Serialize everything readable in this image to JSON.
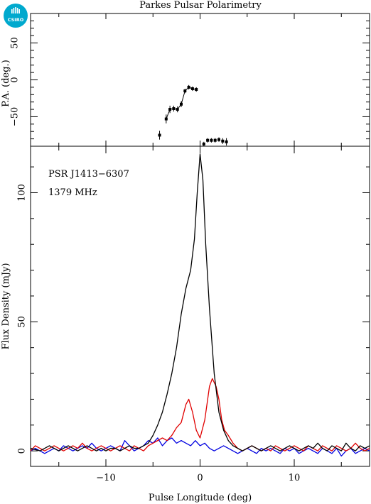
{
  "chart_data": [
    {
      "type": "scatter",
      "panel": "position-angle",
      "title": "Parkes Pulsar Polarimetry",
      "xlabel": "",
      "ylabel": "P.A. (deg.)",
      "xlim": [
        -18,
        18
      ],
      "ylim": [
        -90,
        90
      ],
      "yticks": [
        -50,
        0,
        50
      ],
      "error_bars": true,
      "points": [
        {
          "x": -4.3,
          "y": -75,
          "err": 6
        },
        {
          "x": -3.6,
          "y": -53,
          "err": 6
        },
        {
          "x": -3.2,
          "y": -40,
          "err": 5
        },
        {
          "x": -2.8,
          "y": -39,
          "err": 4
        },
        {
          "x": -2.4,
          "y": -40,
          "err": 4
        },
        {
          "x": -2.0,
          "y": -33,
          "err": 4
        },
        {
          "x": -1.6,
          "y": -15,
          "err": 3
        },
        {
          "x": -1.2,
          "y": -10,
          "err": 3
        },
        {
          "x": -0.8,
          "y": -12,
          "err": 3
        },
        {
          "x": -0.4,
          "y": -13,
          "err": 3
        },
        {
          "x": 0.4,
          "y": -87,
          "err": 3
        },
        {
          "x": 0.8,
          "y": -82,
          "err": 3
        },
        {
          "x": 1.2,
          "y": -82,
          "err": 3
        },
        {
          "x": 1.6,
          "y": -82,
          "err": 3
        },
        {
          "x": 2.0,
          "y": -81,
          "err": 3
        },
        {
          "x": 2.4,
          "y": -83,
          "err": 4
        },
        {
          "x": 2.8,
          "y": -84,
          "err": 5
        }
      ]
    },
    {
      "type": "line",
      "panel": "profile",
      "xlabel": "Pulse Longitude (deg)",
      "ylabel": "Flux Density (mJy)",
      "xlim": [
        -18,
        18
      ],
      "ylim": [
        -6,
        118
      ],
      "xticks": [
        -10,
        0,
        10
      ],
      "yticks": [
        0,
        50,
        100
      ],
      "annotations": [
        "PSR J1413−6307",
        "1379 MHz"
      ],
      "series": [
        {
          "color": "#000000",
          "points": [
            [
              -18,
              1
            ],
            [
              -17.5,
              0.5
            ],
            [
              -17,
              0
            ],
            [
              -16.5,
              1
            ],
            [
              -16,
              2
            ],
            [
              -15.5,
              1
            ],
            [
              -15,
              0
            ],
            [
              -14.5,
              1
            ],
            [
              -14,
              2
            ],
            [
              -13.5,
              1
            ],
            [
              -13,
              0
            ],
            [
              -12.5,
              1
            ],
            [
              -12,
              2
            ],
            [
              -11.5,
              1
            ],
            [
              -11,
              0
            ],
            [
              -10.5,
              1
            ],
            [
              -10,
              0
            ],
            [
              -9.5,
              1
            ],
            [
              -9,
              1
            ],
            [
              -8.5,
              0
            ],
            [
              -8,
              1
            ],
            [
              -7.5,
              2
            ],
            [
              -7,
              1
            ],
            [
              -6.5,
              1
            ],
            [
              -6,
              2
            ],
            [
              -5.5,
              3
            ],
            [
              -5,
              6
            ],
            [
              -4.5,
              10
            ],
            [
              -4,
              15
            ],
            [
              -3.5,
              22
            ],
            [
              -3,
              30
            ],
            [
              -2.5,
              40
            ],
            [
              -2,
              53
            ],
            [
              -1.5,
              63
            ],
            [
              -1,
              70
            ],
            [
              -0.6,
              82
            ],
            [
              -0.3,
              100
            ],
            [
              0,
              115
            ],
            [
              0.3,
              105
            ],
            [
              0.6,
              80
            ],
            [
              1,
              55
            ],
            [
              1.5,
              30
            ],
            [
              2,
              15
            ],
            [
              2.5,
              8
            ],
            [
              3,
              4
            ],
            [
              3.5,
              2
            ],
            [
              4,
              1
            ],
            [
              4.5,
              0
            ],
            [
              5,
              1
            ],
            [
              5.5,
              2
            ],
            [
              6,
              1
            ],
            [
              6.5,
              0
            ],
            [
              7,
              1
            ],
            [
              7.5,
              2
            ],
            [
              8,
              1
            ],
            [
              8.5,
              0
            ],
            [
              9,
              1
            ],
            [
              9.5,
              2
            ],
            [
              10,
              1
            ],
            [
              10.5,
              0
            ],
            [
              11,
              1
            ],
            [
              11.5,
              2
            ],
            [
              12,
              1
            ],
            [
              12.5,
              3
            ],
            [
              13,
              1
            ],
            [
              13.5,
              0
            ],
            [
              14,
              2
            ],
            [
              14.5,
              1
            ],
            [
              15,
              0
            ],
            [
              15.5,
              3
            ],
            [
              16,
              1
            ],
            [
              16.5,
              0
            ],
            [
              17,
              2
            ],
            [
              17.5,
              1
            ],
            [
              18,
              2
            ]
          ]
        },
        {
          "color": "#e00000",
          "points": [
            [
              -18,
              0
            ],
            [
              -17.5,
              2
            ],
            [
              -17,
              1
            ],
            [
              -16.5,
              0
            ],
            [
              -16,
              1
            ],
            [
              -15.5,
              2
            ],
            [
              -15,
              1
            ],
            [
              -14.5,
              0
            ],
            [
              -14,
              1
            ],
            [
              -13.5,
              2
            ],
            [
              -13,
              1
            ],
            [
              -12.5,
              3
            ],
            [
              -12,
              1
            ],
            [
              -11.5,
              0
            ],
            [
              -11,
              1
            ],
            [
              -10.5,
              2
            ],
            [
              -10,
              1
            ],
            [
              -9.5,
              0
            ],
            [
              -9,
              1
            ],
            [
              -8.5,
              2
            ],
            [
              -8,
              1
            ],
            [
              -7.5,
              0
            ],
            [
              -7,
              2
            ],
            [
              -6.5,
              1
            ],
            [
              -6,
              0
            ],
            [
              -5.5,
              2
            ],
            [
              -5,
              3
            ],
            [
              -4.5,
              4
            ],
            [
              -4,
              5
            ],
            [
              -3.5,
              4
            ],
            [
              -3,
              6
            ],
            [
              -2.5,
              9
            ],
            [
              -2,
              11
            ],
            [
              -1.5,
              18
            ],
            [
              -1.2,
              20
            ],
            [
              -0.8,
              15
            ],
            [
              -0.4,
              8
            ],
            [
              0,
              5
            ],
            [
              0.5,
              12
            ],
            [
              1,
              25
            ],
            [
              1.3,
              28
            ],
            [
              1.7,
              25
            ],
            [
              2,
              20
            ],
            [
              2.3,
              12
            ],
            [
              2.6,
              8
            ],
            [
              3,
              6
            ],
            [
              3.5,
              3
            ],
            [
              4,
              1
            ],
            [
              4.5,
              0
            ],
            [
              5,
              1
            ],
            [
              5.5,
              2
            ],
            [
              6,
              1
            ],
            [
              6.5,
              0
            ],
            [
              7,
              1
            ],
            [
              7.5,
              0
            ],
            [
              8,
              2
            ],
            [
              8.5,
              1
            ],
            [
              9,
              0
            ],
            [
              9.5,
              1
            ],
            [
              10,
              2
            ],
            [
              10.5,
              1
            ],
            [
              11,
              0
            ],
            [
              11.5,
              2
            ],
            [
              12,
              1
            ],
            [
              12.5,
              0
            ],
            [
              13,
              2
            ],
            [
              13.5,
              1
            ],
            [
              14,
              0
            ],
            [
              14.5,
              2
            ],
            [
              15,
              1
            ],
            [
              15.5,
              0
            ],
            [
              16,
              1
            ],
            [
              16.5,
              3
            ],
            [
              17,
              1
            ],
            [
              17.5,
              0
            ],
            [
              18,
              1
            ]
          ]
        },
        {
          "color": "#0000e0",
          "points": [
            [
              -18,
              0
            ],
            [
              -17.5,
              1
            ],
            [
              -17,
              0
            ],
            [
              -16.5,
              -1
            ],
            [
              -16,
              0
            ],
            [
              -15.5,
              1
            ],
            [
              -15,
              0
            ],
            [
              -14.5,
              2
            ],
            [
              -14,
              1
            ],
            [
              -13.5,
              0
            ],
            [
              -13,
              1
            ],
            [
              -12.5,
              2
            ],
            [
              -12,
              1
            ],
            [
              -11.5,
              3
            ],
            [
              -11,
              1
            ],
            [
              -10.5,
              0
            ],
            [
              -10,
              1
            ],
            [
              -9.5,
              2
            ],
            [
              -9,
              1
            ],
            [
              -8.5,
              0
            ],
            [
              -8,
              4
            ],
            [
              -7.5,
              2
            ],
            [
              -7,
              0
            ],
            [
              -6.5,
              1
            ],
            [
              -6,
              2
            ],
            [
              -5.5,
              4
            ],
            [
              -5,
              3
            ],
            [
              -4.5,
              5
            ],
            [
              -4,
              2
            ],
            [
              -3.5,
              4
            ],
            [
              -3,
              5
            ],
            [
              -2.5,
              3
            ],
            [
              -2,
              4
            ],
            [
              -1.5,
              3
            ],
            [
              -1,
              2
            ],
            [
              -0.5,
              4
            ],
            [
              0,
              2
            ],
            [
              0.5,
              3
            ],
            [
              1,
              1
            ],
            [
              1.5,
              0
            ],
            [
              2,
              1
            ],
            [
              2.5,
              2
            ],
            [
              3,
              1
            ],
            [
              3.5,
              0
            ],
            [
              4,
              -1
            ],
            [
              4.5,
              0
            ],
            [
              5,
              1
            ],
            [
              5.5,
              0
            ],
            [
              6,
              -1
            ],
            [
              6.5,
              1
            ],
            [
              7,
              0
            ],
            [
              7.5,
              1
            ],
            [
              8,
              0
            ],
            [
              8.5,
              -1
            ],
            [
              9,
              1
            ],
            [
              9.5,
              0
            ],
            [
              10,
              1
            ],
            [
              10.5,
              -1
            ],
            [
              11,
              0
            ],
            [
              11.5,
              1
            ],
            [
              12,
              0
            ],
            [
              12.5,
              -1
            ],
            [
              13,
              1
            ],
            [
              13.5,
              0
            ],
            [
              14,
              -1
            ],
            [
              14.5,
              1
            ],
            [
              15,
              -2
            ],
            [
              15.5,
              0
            ],
            [
              16,
              1
            ],
            [
              16.5,
              -1
            ],
            [
              17,
              0
            ],
            [
              17.5,
              1
            ],
            [
              18,
              0
            ]
          ]
        }
      ]
    }
  ],
  "logo": {
    "text": "CSIRO",
    "color": "#00a9ce"
  }
}
